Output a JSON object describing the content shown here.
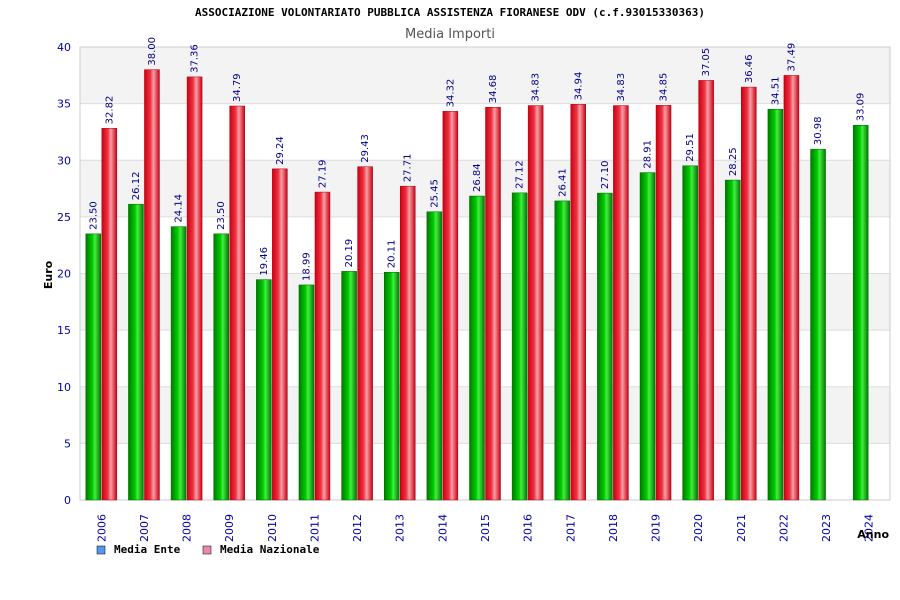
{
  "chart_data": {
    "type": "bar",
    "title": "ASSOCIAZIONE VOLONTARIATO PUBBLICA ASSISTENZA FIORANESE ODV (c.f.93015330363)",
    "subtitle": "Media Importi",
    "xlabel": "Anno",
    "ylabel": "Euro",
    "ylim": [
      0,
      40
    ],
    "yticks": [
      "0",
      "5",
      "10",
      "15",
      "20",
      "25",
      "30",
      "35",
      "40"
    ],
    "grid": true,
    "legend_position": "bottom-left",
    "categories": [
      "2006",
      "2007",
      "2008",
      "2009",
      "2010",
      "2011",
      "2012",
      "2013",
      "2014",
      "2015",
      "2016",
      "2017",
      "2018",
      "2019",
      "2020",
      "2021",
      "2022",
      "2023",
      "2024"
    ],
    "series": [
      {
        "name": "Media Ente",
        "color": "#00bb00",
        "legend_color": "#5599ee",
        "values": [
          23.5,
          26.12,
          24.14,
          23.5,
          19.46,
          18.99,
          20.19,
          20.11,
          25.45,
          26.84,
          27.12,
          26.41,
          27.1,
          28.91,
          29.51,
          28.25,
          34.51,
          30.98,
          33.09
        ],
        "labels": [
          "23.50",
          "26.12",
          "24.14",
          "23.50",
          "19.46",
          "18.99",
          "20.19",
          "20.11",
          "25.45",
          "26.84",
          "27.12",
          "26.41",
          "27.10",
          "28.91",
          "29.51",
          "28.25",
          "34.51",
          "30.98",
          "33.09"
        ]
      },
      {
        "name": "Media Nazionale",
        "color": "#ee1122",
        "legend_color": "#ee88aa",
        "values": [
          32.82,
          38.0,
          37.36,
          34.79,
          29.24,
          27.19,
          29.43,
          27.71,
          34.32,
          34.68,
          34.83,
          34.94,
          34.83,
          34.85,
          37.05,
          36.46,
          37.49,
          null,
          null
        ],
        "labels": [
          "32.82",
          "38.00",
          "37.36",
          "34.79",
          "29.24",
          "27.19",
          "29.43",
          "27.71",
          "34.32",
          "34.68",
          "34.83",
          "34.94",
          "34.83",
          "34.85",
          "37.05",
          "36.46",
          "37.49",
          null,
          null
        ]
      }
    ]
  }
}
